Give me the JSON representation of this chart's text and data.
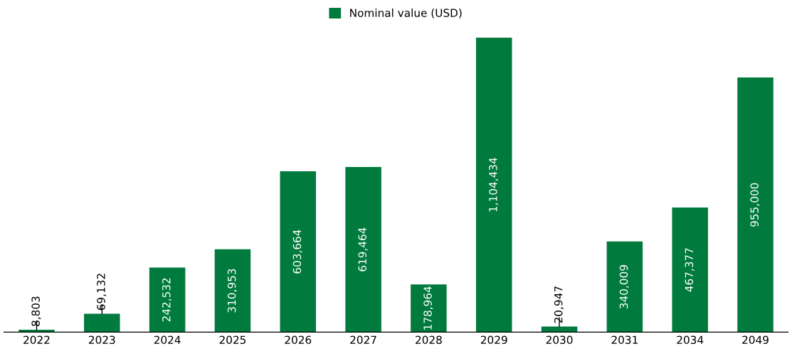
{
  "chart_data": {
    "type": "bar",
    "categories": [
      "2022",
      "2023",
      "2024",
      "2025",
      "2026",
      "2027",
      "2028",
      "2029",
      "2030",
      "2031",
      "2034",
      "2049"
    ],
    "series": [
      {
        "name": "Nominal value (USD)",
        "color": "#007a3d",
        "values": [
          8803,
          69132,
          242532,
          310953,
          603664,
          619464,
          178964,
          1104434,
          20947,
          340009,
          467377,
          955000
        ],
        "value_labels": [
          "8,803",
          "69,132",
          "242,532",
          "310,953",
          "603,664",
          "619,464",
          "178,964",
          "1,104,434",
          "20,947",
          "340,009",
          "467,377",
          "955,000"
        ]
      }
    ],
    "legend": "top",
    "grid": false
  }
}
